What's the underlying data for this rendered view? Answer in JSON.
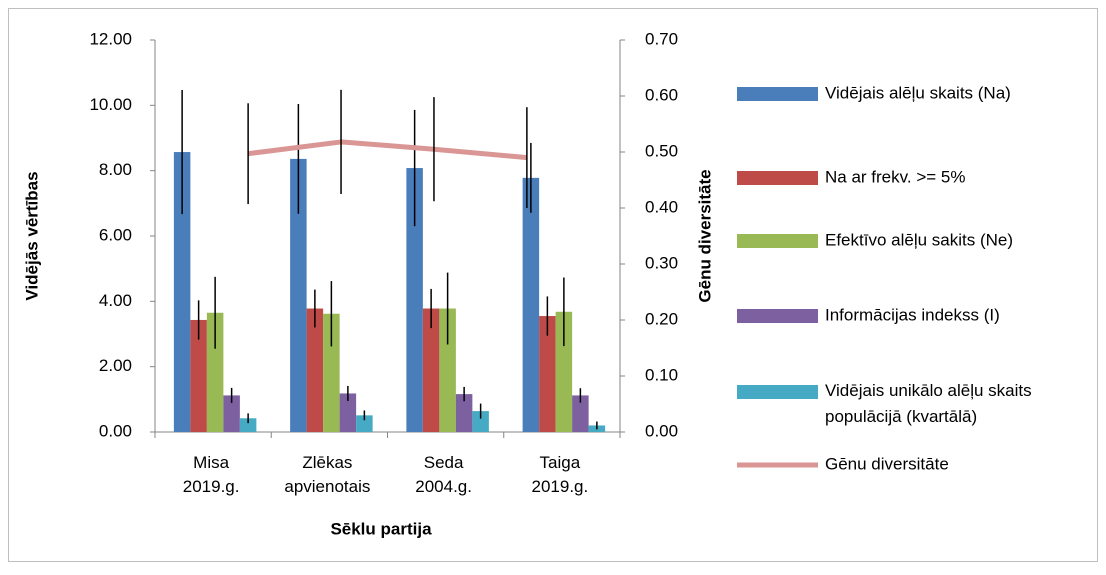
{
  "chart_data": {
    "type": "bar",
    "categories": [
      "Misa 2019.g.",
      "Zlēkas apvienotais",
      "Seda 2004.g.",
      "Taiga 2019.g."
    ],
    "x_label": "Sēklu partija",
    "y_label": "Vidējās vērtības",
    "y2_label": "Gēnu diversitāte",
    "ylim": [
      0,
      12
    ],
    "yticks": [
      {
        "value": 0,
        "label": "0.00"
      },
      {
        "value": 2,
        "label": "2.00"
      },
      {
        "value": 4,
        "label": "4.00"
      },
      {
        "value": 6,
        "label": "6.00"
      },
      {
        "value": 8,
        "label": "8.00"
      },
      {
        "value": 10,
        "label": "10.00"
      },
      {
        "value": 12,
        "label": "12.00"
      }
    ],
    "y2lim": [
      0,
      0.7
    ],
    "y2ticks": [
      {
        "value": 0,
        "label": "0.00"
      },
      {
        "value": 0.1,
        "label": "0.10"
      },
      {
        "value": 0.2,
        "label": "0.20"
      },
      {
        "value": 0.3,
        "label": "0.30"
      },
      {
        "value": 0.4,
        "label": "0.40"
      },
      {
        "value": 0.5,
        "label": "0.50"
      },
      {
        "value": 0.6,
        "label": "0.60"
      },
      {
        "value": 0.7,
        "label": "0.70"
      }
    ],
    "legend": "right",
    "series": [
      {
        "name": "Vidējais alēļu skaits (Na)",
        "color": "#4a7ebb",
        "values": [
          8.57,
          8.36,
          8.08,
          7.78
        ],
        "errors": [
          1.9,
          1.68,
          1.78,
          1.07
        ]
      },
      {
        "name": "Na ar frekv. >= 5%",
        "color": "#be4b48",
        "values": [
          3.43,
          3.78,
          3.78,
          3.55
        ],
        "errors": [
          0.6,
          0.58,
          0.6,
          0.6
        ]
      },
      {
        "name": "Efektīvo alēļu sakits (Ne)",
        "color": "#98b954",
        "values": [
          3.65,
          3.62,
          3.78,
          3.68
        ],
        "errors": [
          1.1,
          1.0,
          1.1,
          1.05
        ]
      },
      {
        "name": "Informācijas indekss (I)",
        "color": "#7d60a0",
        "values": [
          1.12,
          1.18,
          1.16,
          1.12
        ],
        "errors": [
          0.23,
          0.23,
          0.22,
          0.22
        ]
      },
      {
        "name": "Vidējais unikālo alēļu skaits populācijā (kvartālā)",
        "color": "#46aac5",
        "values": [
          0.42,
          0.51,
          0.64,
          0.2
        ],
        "errors": [
          0.15,
          0.15,
          0.23,
          0.12
        ]
      },
      {
        "name": "Gēnu diversitāte",
        "color": "#d99694",
        "type": "line",
        "axis": "y2",
        "values": [
          0.497,
          0.518,
          0.505,
          0.49
        ],
        "errors": [
          0.09,
          0.093,
          0.093,
          0.09
        ]
      }
    ]
  }
}
